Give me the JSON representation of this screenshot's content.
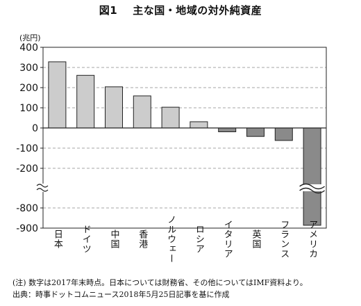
{
  "figure": {
    "label": "図1",
    "title": "主な国・地域の対外純資産",
    "unit": "(兆円)",
    "note": "(注) 数字は2017年末時点。日本については財務省、その他についてはIMF資料より。",
    "source": "出典：時事ドットコムニュース2018年5月25日記事を基に作成"
  },
  "chart_data": {
    "type": "bar",
    "title": "図1　主な国・地域の対外純資産",
    "ylabel": "(兆円)",
    "categories": [
      "日本",
      "ドイツ",
      "中国",
      "香港",
      "ノルウェー",
      "ロシア",
      "イタリア",
      "英国",
      "フランス",
      "アメリカ"
    ],
    "values": [
      328,
      261,
      204,
      159,
      103,
      31,
      -19,
      -42,
      -62,
      -886
    ],
    "y_ticks": [
      400,
      300,
      200,
      100,
      0,
      -100,
      -200,
      -800,
      -900
    ],
    "ylim": [
      -900,
      400
    ],
    "axis_break": {
      "from": -300,
      "to": -700
    },
    "grid": "dashed horizontal",
    "colors": {
      "positive": "#cccccc",
      "negative": "#8a8a8a",
      "outline": "#222222"
    }
  }
}
